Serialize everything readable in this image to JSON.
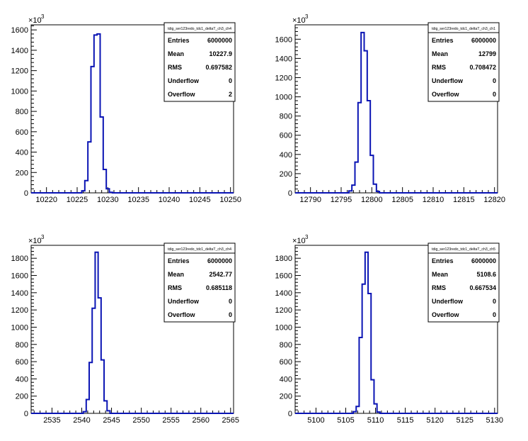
{
  "colors": {
    "histogram_line": "#0a14b4",
    "axis": "#000000",
    "background": "#ffffff"
  },
  "y_exponent_label": "×10",
  "y_exponent_power": "3",
  "chart_data": [
    {
      "type": "histogram",
      "name": "tdig_ser123redo_tdc1_deltaT_ch3_ch4",
      "stats": [
        {
          "label": "Entries",
          "value": "6000000"
        },
        {
          "label": "Mean",
          "value": "10227.9"
        },
        {
          "label": "RMS",
          "value": "0.697582"
        },
        {
          "label": "Underflow",
          "value": "0"
        },
        {
          "label": "Overflow",
          "value": "2"
        }
      ],
      "xlim": [
        10217.5,
        10250.5
      ],
      "ylim": [
        0,
        1650
      ],
      "x_ticks": [
        10220,
        10225,
        10230,
        10235,
        10240,
        10245,
        10250
      ],
      "y_ticks": [
        0,
        200,
        400,
        600,
        800,
        1000,
        1200,
        1400,
        1600
      ],
      "bin_width": 0.5,
      "bins": [
        {
          "x": 10226.0,
          "y": 20
        },
        {
          "x": 10226.5,
          "y": 120
        },
        {
          "x": 10227.0,
          "y": 500
        },
        {
          "x": 10227.5,
          "y": 1240
        },
        {
          "x": 10228.0,
          "y": 1550
        },
        {
          "x": 10228.5,
          "y": 1560
        },
        {
          "x": 10229.0,
          "y": 745
        },
        {
          "x": 10229.5,
          "y": 230
        },
        {
          "x": 10230.0,
          "y": 40
        },
        {
          "x": 10230.5,
          "y": 5
        }
      ]
    },
    {
      "type": "histogram",
      "name": "tdig_ser123redo_tdc1_deltaT_ch3_ch1",
      "stats": [
        {
          "label": "Entries",
          "value": "6000000"
        },
        {
          "label": "Mean",
          "value": "12799"
        },
        {
          "label": "RMS",
          "value": "0.708472"
        },
        {
          "label": "Underflow",
          "value": "0"
        },
        {
          "label": "Overflow",
          "value": "0"
        }
      ],
      "xlim": [
        12787.5,
        12820.5
      ],
      "ylim": [
        0,
        1750
      ],
      "x_ticks": [
        12790,
        12795,
        12800,
        12805,
        12810,
        12815,
        12820
      ],
      "y_ticks": [
        0,
        200,
        400,
        600,
        800,
        1000,
        1200,
        1400,
        1600
      ],
      "bin_width": 0.5,
      "bins": [
        {
          "x": 12796.5,
          "y": 20
        },
        {
          "x": 12797.0,
          "y": 80
        },
        {
          "x": 12797.5,
          "y": 320
        },
        {
          "x": 12798.0,
          "y": 940
        },
        {
          "x": 12798.5,
          "y": 1670
        },
        {
          "x": 12799.0,
          "y": 1480
        },
        {
          "x": 12799.5,
          "y": 960
        },
        {
          "x": 12800.0,
          "y": 390
        },
        {
          "x": 12800.5,
          "y": 90
        },
        {
          "x": 12801.0,
          "y": 15
        }
      ]
    },
    {
      "type": "histogram",
      "name": "tdig_ser123redo_tdc1_deltaT_ch3_ch4",
      "stats": [
        {
          "label": "Entries",
          "value": "6000000"
        },
        {
          "label": "Mean",
          "value": "2542.77"
        },
        {
          "label": "RMS",
          "value": "0.685118"
        },
        {
          "label": "Underflow",
          "value": "0"
        },
        {
          "label": "Overflow",
          "value": "0"
        }
      ],
      "xlim": [
        2531.5,
        2565.5
      ],
      "ylim": [
        0,
        1950
      ],
      "x_ticks": [
        2535,
        2540,
        2545,
        2550,
        2555,
        2560,
        2565
      ],
      "y_ticks": [
        0,
        200,
        400,
        600,
        800,
        1000,
        1200,
        1400,
        1600,
        1800
      ],
      "bin_width": 0.5,
      "bins": [
        {
          "x": 2540.5,
          "y": 20
        },
        {
          "x": 2541.0,
          "y": 160
        },
        {
          "x": 2541.5,
          "y": 590
        },
        {
          "x": 2542.0,
          "y": 1220
        },
        {
          "x": 2542.5,
          "y": 1870
        },
        {
          "x": 2543.0,
          "y": 1340
        },
        {
          "x": 2543.5,
          "y": 620
        },
        {
          "x": 2544.0,
          "y": 145
        },
        {
          "x": 2544.5,
          "y": 30
        }
      ]
    },
    {
      "type": "histogram",
      "name": "tdig_ser123redo_tdc1_deltaT_ch3_ch5",
      "stats": [
        {
          "label": "Entries",
          "value": "6000000"
        },
        {
          "label": "Mean",
          "value": "5108.6"
        },
        {
          "label": "RMS",
          "value": "0.667534"
        },
        {
          "label": "Underflow",
          "value": "0"
        },
        {
          "label": "Overflow",
          "value": "0"
        }
      ],
      "xlim": [
        5096.5,
        5130.5
      ],
      "ylim": [
        0,
        1950
      ],
      "x_ticks": [
        5100,
        5105,
        5110,
        5115,
        5120,
        5125,
        5130
      ],
      "y_ticks": [
        0,
        200,
        400,
        600,
        800,
        1000,
        1200,
        1400,
        1600,
        1800
      ],
      "bin_width": 0.5,
      "bins": [
        {
          "x": 5106.5,
          "y": 20
        },
        {
          "x": 5107.0,
          "y": 80
        },
        {
          "x": 5107.5,
          "y": 880
        },
        {
          "x": 5108.0,
          "y": 1500
        },
        {
          "x": 5108.5,
          "y": 1870
        },
        {
          "x": 5109.0,
          "y": 1390
        },
        {
          "x": 5109.5,
          "y": 390
        },
        {
          "x": 5110.0,
          "y": 110
        },
        {
          "x": 5110.5,
          "y": 15
        }
      ]
    }
  ]
}
